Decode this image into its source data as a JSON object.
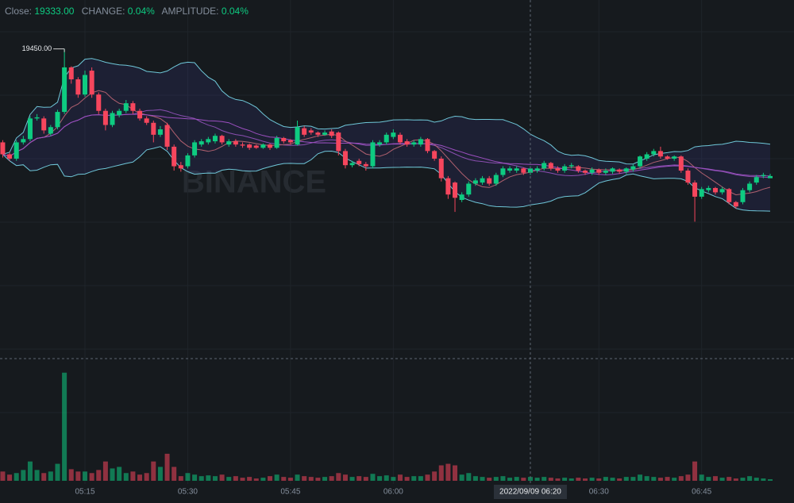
{
  "chart_data": {
    "type": "candlestick",
    "header": {
      "close_label": "Close:",
      "close_value": "19333.00",
      "change_label": "CHANGE:",
      "change_value": "0.04%",
      "amplitude_label": "AMPLITUDE:",
      "amplitude_value": "0.04%"
    },
    "watermark": "BINANCE",
    "max_high_label": "19450.00",
    "crosshair_label": "2022/09/09 06:20",
    "up_color": "#0ecb81",
    "down_color": "#f6465d",
    "ylim": [
      19165,
      19495
    ],
    "vlim": [
      0,
      150
    ],
    "ma_periods": [
      7,
      25
    ],
    "boll": [
      20,
      2
    ],
    "x": [
      "05:03",
      "05:04",
      "05:05",
      "05:06",
      "05:07",
      "05:08",
      "05:09",
      "05:10",
      "05:11",
      "05:12",
      "05:13",
      "05:14",
      "05:15",
      "05:16",
      "05:17",
      "05:18",
      "05:19",
      "05:20",
      "05:21",
      "05:22",
      "05:23",
      "05:24",
      "05:25",
      "05:26",
      "05:27",
      "05:28",
      "05:29",
      "05:30",
      "05:31",
      "05:32",
      "05:33",
      "05:34",
      "05:35",
      "05:36",
      "05:37",
      "05:38",
      "05:39",
      "05:40",
      "05:41",
      "05:42",
      "05:43",
      "05:44",
      "05:45",
      "05:46",
      "05:47",
      "05:48",
      "05:49",
      "05:50",
      "05:51",
      "05:52",
      "05:53",
      "05:54",
      "05:55",
      "05:56",
      "05:57",
      "05:58",
      "05:59",
      "06:00",
      "06:01",
      "06:02",
      "06:03",
      "06:04",
      "06:05",
      "06:06",
      "06:07",
      "06:08",
      "06:09",
      "06:10",
      "06:11",
      "06:12",
      "06:13",
      "06:14",
      "06:15",
      "06:16",
      "06:17",
      "06:18",
      "06:19",
      "06:20",
      "06:21",
      "06:22",
      "06:23",
      "06:24",
      "06:25",
      "06:26",
      "06:27",
      "06:28",
      "06:29",
      "06:30",
      "06:31",
      "06:32",
      "06:33",
      "06:34",
      "06:35",
      "06:36",
      "06:37",
      "06:38",
      "06:39",
      "06:40",
      "06:41",
      "06:42",
      "06:43",
      "06:44",
      "06:45",
      "06:46",
      "06:47",
      "06:48",
      "06:49",
      "06:50",
      "06:51",
      "06:52",
      "06:53",
      "06:54",
      "06:55"
    ],
    "xticks": [
      "05:15",
      "05:30",
      "05:45",
      "06:00",
      "06:30",
      "06:45"
    ],
    "open": [
      19364,
      19353,
      19349,
      19364,
      19367,
      19386,
      19386,
      19372,
      19378,
      19392,
      19433,
      19422,
      19408,
      19430,
      19408,
      19393,
      19380,
      19389,
      19393,
      19400,
      19393,
      19386,
      19382,
      19371,
      19380,
      19360,
      19343,
      19342,
      19352,
      19362,
      19364,
      19365,
      19370,
      19362,
      19365,
      19362,
      19362,
      19361,
      19359,
      19362,
      19359,
      19368,
      19366,
      19362,
      19377,
      19375,
      19373,
      19371,
      19374,
      19373,
      19356,
      19343,
      19347,
      19344,
      19342,
      19362,
      19364,
      19369,
      19371,
      19365,
      19362,
      19362,
      19367,
      19356,
      19349,
      19331,
      19327,
      19311,
      19316,
      19326,
      19327,
      19331,
      19326,
      19334,
      19338,
      19338,
      19340,
      19336,
      19338,
      19340,
      19345,
      19340,
      19338,
      19342,
      19342,
      19338,
      19336,
      19339,
      19336,
      19337,
      19339,
      19337,
      19339,
      19342,
      19349,
      19353,
      19356,
      19351,
      19349,
      19351,
      19338,
      19327,
      19314,
      19320,
      19322,
      19318,
      19321,
      19309,
      19309,
      19320,
      19327,
      19333,
      19331
    ],
    "high": [
      19366,
      19355,
      19366,
      19370,
      19388,
      19390,
      19388,
      19380,
      19394,
      19450,
      19434,
      19424,
      19430,
      19433,
      19410,
      19395,
      19393,
      19395,
      19403,
      19402,
      19395,
      19388,
      19384,
      19379,
      19382,
      19362,
      19346,
      19354,
      19366,
      19367,
      19369,
      19372,
      19371,
      19367,
      19367,
      19364,
      19363,
      19362,
      19363,
      19363,
      19370,
      19369,
      19367,
      19384,
      19379,
      19377,
      19374,
      19375,
      19376,
      19374,
      19358,
      19347,
      19349,
      19346,
      19366,
      19366,
      19373,
      19376,
      19373,
      19367,
      19366,
      19369,
      19368,
      19357,
      19351,
      19333,
      19328,
      19318,
      19328,
      19331,
      19333,
      19333,
      19336,
      19342,
      19342,
      19342,
      19341,
      19342,
      19342,
      19347,
      19346,
      19342,
      19344,
      19345,
      19343,
      19339,
      19341,
      19340,
      19340,
      19341,
      19340,
      19341,
      19344,
      19352,
      19355,
      19358,
      19360,
      19352,
      19352,
      19352,
      19340,
      19329,
      19323,
      19324,
      19323,
      19323,
      19322,
      19310,
      19322,
      19328,
      19334,
      19336,
      19335
    ],
    "low": [
      19350,
      19347,
      19347,
      19362,
      19365,
      19384,
      19372,
      19370,
      19376,
      19390,
      19418,
      19405,
      19406,
      19405,
      19390,
      19375,
      19378,
      19387,
      19391,
      19390,
      19384,
      19380,
      19364,
      19369,
      19357,
      19338,
      19337,
      19340,
      19350,
      19360,
      19362,
      19363,
      19362,
      19360,
      19360,
      19359,
      19357,
      19358,
      19358,
      19357,
      19358,
      19363,
      19362,
      19361,
      19369,
      19371,
      19369,
      19370,
      19368,
      19352,
      19340,
      19341,
      19342,
      19338,
      19340,
      19360,
      19362,
      19367,
      19362,
      19360,
      19360,
      19360,
      19354,
      19347,
      19328,
      19312,
      19300,
      19309,
      19314,
      19324,
      19325,
      19324,
      19324,
      19332,
      19336,
      19336,
      19334,
      19334,
      19336,
      19338,
      19338,
      19336,
      19336,
      19340,
      19336,
      19334,
      19334,
      19334,
      19334,
      19335,
      19335,
      19335,
      19337,
      19340,
      19347,
      19351,
      19349,
      19348,
      19347,
      19336,
      19325,
      19291,
      19312,
      19318,
      19316,
      19316,
      19307,
      19303,
      19307,
      19318,
      19325,
      19331,
      19332
    ],
    "close": [
      19353,
      19349,
      19364,
      19367,
      19386,
      19387,
      19375,
      19378,
      19392,
      19433,
      19422,
      19408,
      19426,
      19408,
      19393,
      19380,
      19391,
      19393,
      19400,
      19393,
      19386,
      19382,
      19371,
      19376,
      19360,
      19342,
      19340,
      19352,
      19364,
      19365,
      19367,
      19370,
      19364,
      19365,
      19362,
      19361,
      19359,
      19359,
      19362,
      19359,
      19368,
      19365,
      19364,
      19378,
      19371,
      19373,
      19371,
      19373,
      19370,
      19356,
      19343,
      19345,
      19344,
      19342,
      19364,
      19364,
      19371,
      19373,
      19364,
      19362,
      19364,
      19367,
      19356,
      19349,
      19331,
      19316,
      19313,
      19316,
      19326,
      19329,
      19331,
      19326,
      19334,
      19340,
      19340,
      19340,
      19336,
      19340,
      19340,
      19345,
      19340,
      19338,
      19342,
      19343,
      19338,
      19336,
      19339,
      19336,
      19338,
      19340,
      19337,
      19340,
      19342,
      19351,
      19353,
      19356,
      19351,
      19349,
      19351,
      19338,
      19327,
      19314,
      19321,
      19322,
      19318,
      19321,
      19309,
      19305,
      19320,
      19326,
      19332,
      19334,
      19333
    ],
    "volume": [
      12,
      8,
      10,
      14,
      25,
      14,
      10,
      12,
      22,
      140,
      15,
      12,
      12,
      10,
      14,
      25,
      16,
      18,
      10,
      12,
      8,
      10,
      25,
      18,
      35,
      18,
      6,
      10,
      8,
      6,
      7,
      6,
      8,
      5,
      6,
      4,
      5,
      3,
      4,
      6,
      8,
      5,
      4,
      8,
      6,
      5,
      4,
      5,
      6,
      10,
      8,
      5,
      6,
      5,
      9,
      6,
      7,
      5,
      8,
      5,
      6,
      6,
      8,
      12,
      20,
      22,
      20,
      8,
      10,
      6,
      5,
      4,
      5,
      6,
      4,
      5,
      4,
      5,
      4,
      5,
      4,
      3,
      4,
      3,
      4,
      3,
      4,
      3,
      5,
      4,
      3,
      5,
      5,
      8,
      6,
      5,
      4,
      5,
      4,
      6,
      8,
      25,
      8,
      5,
      6,
      4,
      5,
      3,
      4,
      6,
      4,
      3,
      2
    ]
  }
}
